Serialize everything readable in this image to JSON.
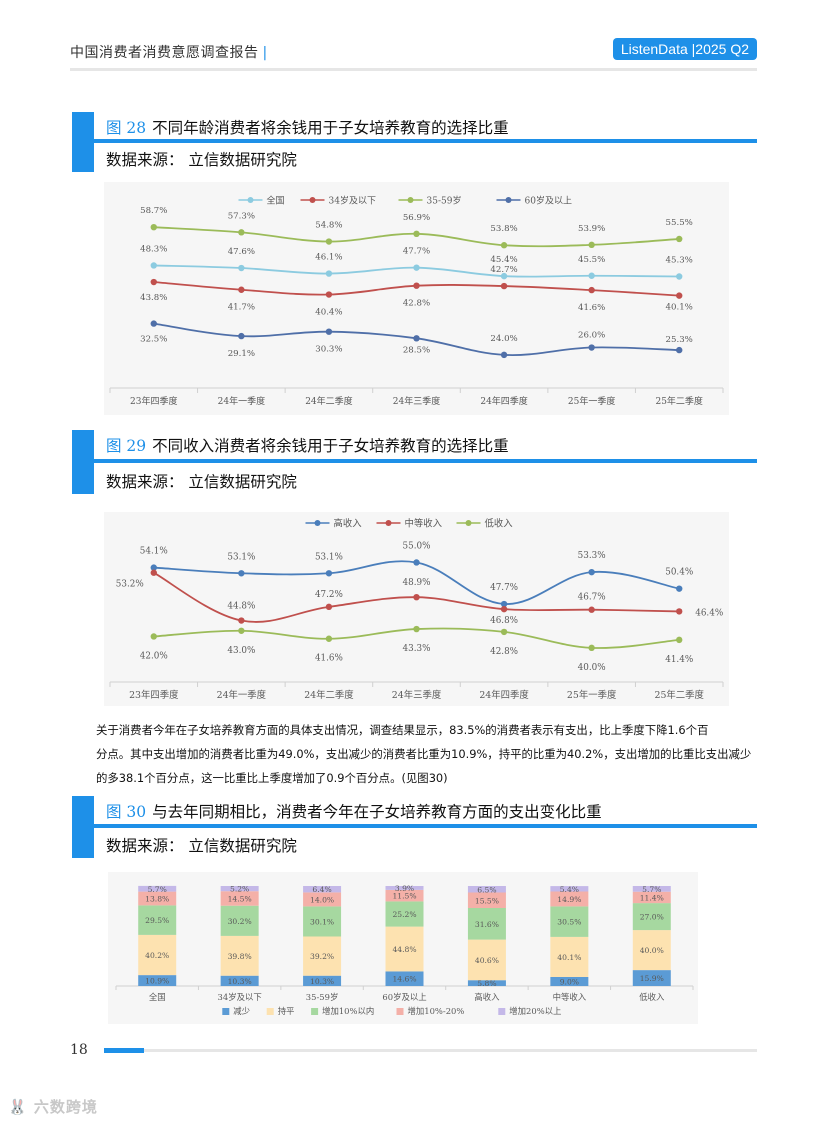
{
  "header": {
    "title": "中国消费者消费意愿调查报告",
    "divider": "|",
    "badge": "ListenData |2025 Q2"
  },
  "figures": [
    {
      "number": "图 28",
      "title": "不同年龄消费者将余钱用于子女培养教育的选择比重",
      "source": "数据来源：  立信数据研究院"
    },
    {
      "number": "图 29",
      "title": "不同收入消费者将余钱用于子女培养教育的选择比重",
      "source": "数据来源：  立信数据研究院"
    },
    {
      "number": "图 30",
      "title": "与去年同期相比，消费者今年在子女培养教育方面的支出变化比重",
      "source": "数据来源：  立信数据研究院"
    }
  ],
  "paragraph": {
    "line1": "关于消费者今年在子女培养教育方面的具体支出情况，调查结果显示，83.5%的消费者表示有支出，比上季度下降1.6个百",
    "line2": "分点。其中支出增加的消费者比重为49.0%，支出减少的消费者比重为10.9%，持平的比重为40.2%，支出增加的比重比支出减少",
    "line3": "的多38.1个百分点，这一比重比上季度增加了0.9个百分点。(见图30)"
  },
  "footer": {
    "page_number": "18",
    "watermark": "🐰 六数跨境"
  },
  "chart_data": [
    {
      "type": "line",
      "categories": [
        "23年四季度",
        "24年一季度",
        "24年二季度",
        "24年三季度",
        "24年四季度",
        "25年一季度",
        "25年二季度"
      ],
      "series": [
        {
          "name": "全国",
          "color": "#8ccbe0",
          "values": [
            48.3,
            47.6,
            46.1,
            47.7,
            45.4,
            45.5,
            45.3
          ],
          "labels": [
            "48.3%",
            "47.6%",
            "46.1%",
            "47.7%",
            "45.4%",
            "45.5%",
            "45.3%"
          ]
        },
        {
          "name": "34岁及以下",
          "color": "#c0504d",
          "values": [
            43.8,
            41.7,
            40.4,
            42.8,
            42.7,
            41.6,
            40.1
          ],
          "labels": [
            "43.8%",
            "41.7%",
            "40.4%",
            "42.8%",
            "42.7%",
            "41.6%",
            "40.1%"
          ]
        },
        {
          "name": "35-59岁",
          "color": "#9bbb59",
          "values": [
            58.7,
            57.3,
            54.8,
            56.9,
            53.8,
            53.9,
            55.5
          ],
          "labels": [
            "58.7%",
            "57.3%",
            "54.8%",
            "56.9%",
            "53.8%",
            "53.9%",
            "55.5%"
          ]
        },
        {
          "name": "60岁及以上",
          "color": "#4f6fa8",
          "values": [
            32.5,
            29.1,
            30.3,
            28.5,
            24.0,
            26.0,
            25.3
          ],
          "labels": [
            "32.5%",
            "29.1%",
            "30.3%",
            "28.5%",
            "24.0%",
            "26.0%",
            "25.3%"
          ]
        }
      ],
      "ylim": [
        15,
        65
      ]
    },
    {
      "type": "line",
      "categories": [
        "23年四季度",
        "24年一季度",
        "24年二季度",
        "24年三季度",
        "24年四季度",
        "25年一季度",
        "25年二季度"
      ],
      "series": [
        {
          "name": "高收入",
          "color": "#4a7ebb",
          "values": [
            54.1,
            53.1,
            53.1,
            55.0,
            47.7,
            53.3,
            50.4
          ],
          "labels": [
            "54.1%",
            "53.1%",
            "53.1%",
            "55.0%",
            "47.7%",
            "53.3%",
            "50.4%"
          ]
        },
        {
          "name": "中等收入",
          "color": "#c0504d",
          "values": [
            53.2,
            44.8,
            47.2,
            48.9,
            46.8,
            46.7,
            46.4
          ],
          "labels": [
            "53.2%",
            "44.8%",
            "47.2%",
            "48.9%",
            "46.8%",
            "46.7%",
            "46.4%"
          ]
        },
        {
          "name": "低收入",
          "color": "#9bbb59",
          "values": [
            42.0,
            43.0,
            41.6,
            43.3,
            42.8,
            40.0,
            41.4
          ],
          "labels": [
            "42.0%",
            "43.0%",
            "41.6%",
            "43.3%",
            "42.8%",
            "40.0%",
            "41.4%"
          ]
        }
      ],
      "ylim": [
        34,
        60
      ]
    },
    {
      "type": "bar",
      "stacked": true,
      "categories": [
        "全国",
        "34岁及以下",
        "35-59岁",
        "60岁及以上",
        "高收入",
        "中等收入",
        "低收入"
      ],
      "series": [
        {
          "name": "减少",
          "color": "#5b9bd5",
          "values": [
            10.9,
            10.3,
            10.3,
            14.6,
            5.8,
            9.0,
            15.9
          ],
          "labels": [
            "10.9%",
            "10.3%",
            "10.3%",
            "14.6%",
            "5.8%",
            "9.0%",
            "15.9%"
          ]
        },
        {
          "name": "持平",
          "color": "#fde2b0",
          "values": [
            40.2,
            39.8,
            39.2,
            44.8,
            40.6,
            40.1,
            40.0
          ],
          "labels": [
            "40.2%",
            "39.8%",
            "39.2%",
            "44.8%",
            "40.6%",
            "40.1%",
            "40.0%"
          ]
        },
        {
          "name": "增加10%以内",
          "color": "#a6d8a0",
          "values": [
            29.5,
            30.2,
            30.1,
            25.2,
            31.6,
            30.5,
            27.0
          ],
          "labels": [
            "29.5%",
            "30.2%",
            "30.1%",
            "25.2%",
            "31.6%",
            "30.5%",
            "27.0%"
          ]
        },
        {
          "name": "增加10%-20%",
          "color": "#f4b0a8",
          "values": [
            13.8,
            14.5,
            14.0,
            11.5,
            15.5,
            14.9,
            11.4
          ],
          "labels": [
            "13.8%",
            "14.5%",
            "14.0%",
            "11.5%",
            "15.5%",
            "14.9%",
            "11.4%"
          ]
        },
        {
          "name": "增加20%以上",
          "color": "#c4b8e8",
          "values": [
            5.7,
            5.2,
            6.4,
            3.9,
            6.5,
            5.4,
            5.7
          ],
          "labels": [
            "5.7%",
            "5.2%",
            "6.4%",
            "3.9%",
            "6.5%",
            "5.4%",
            "5.7%"
          ]
        }
      ],
      "ylim": [
        0,
        100
      ]
    }
  ]
}
